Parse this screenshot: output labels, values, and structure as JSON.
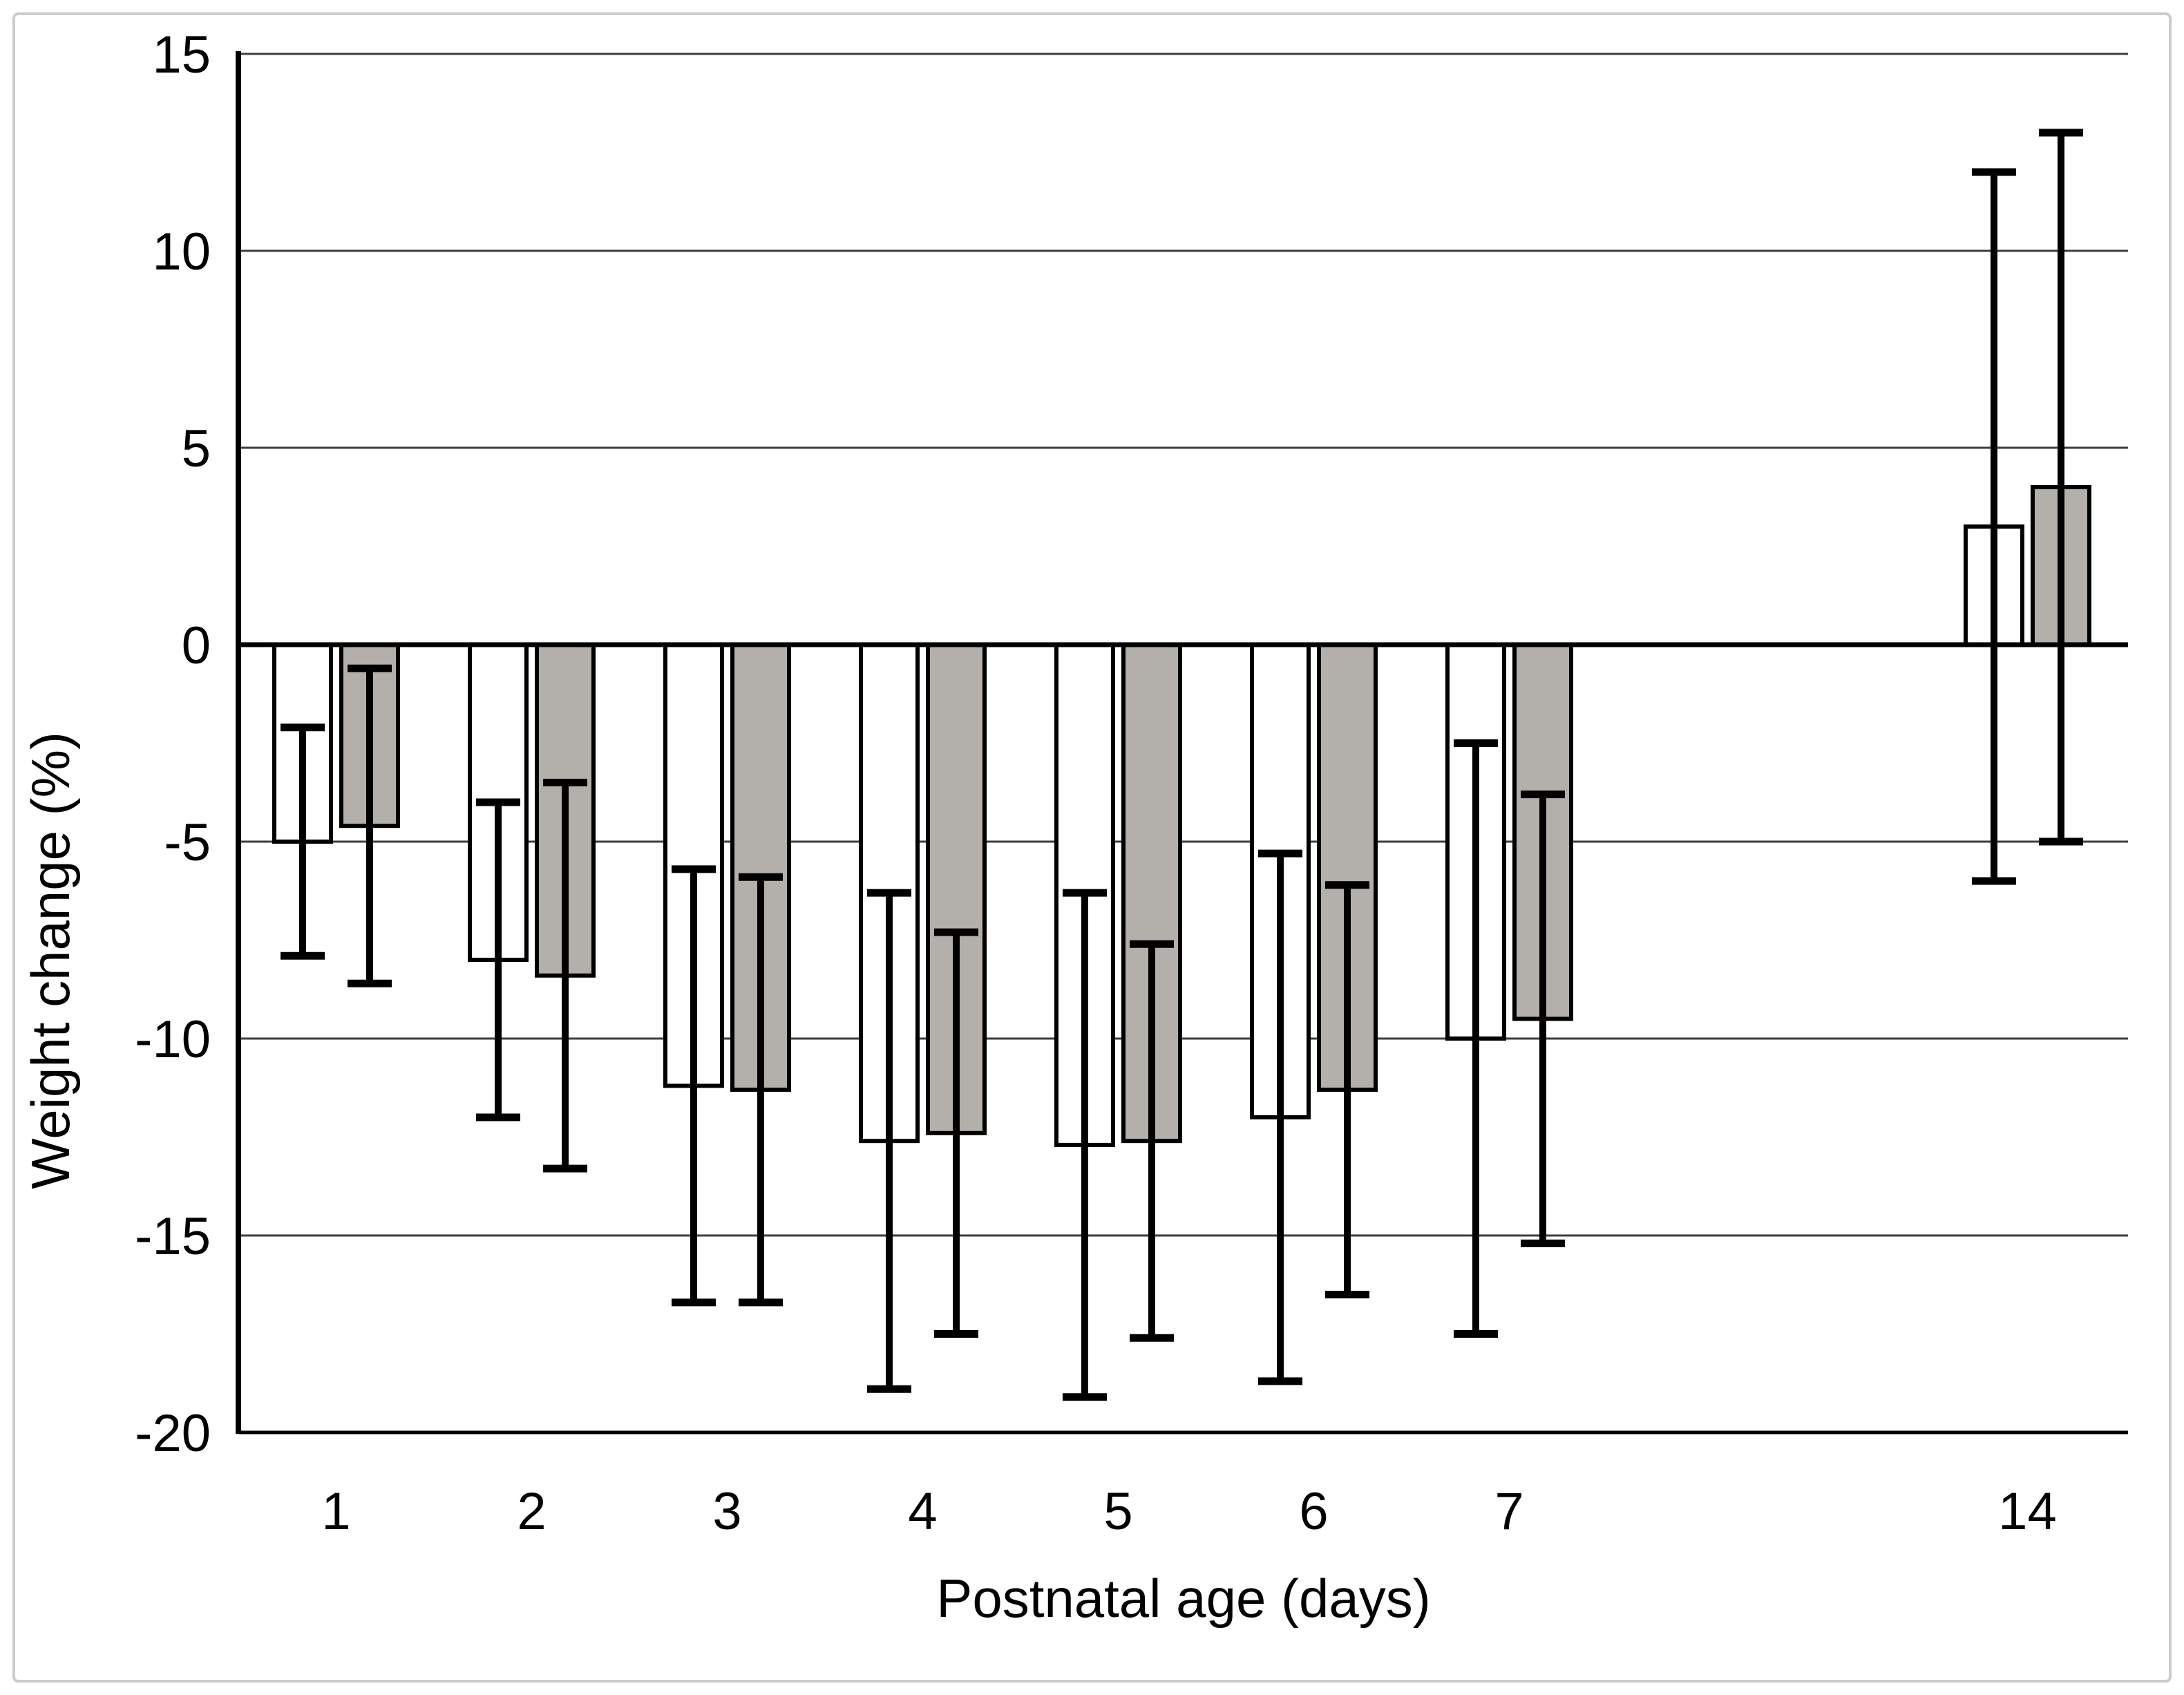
{
  "figure": {
    "description": "Grouped column chart with symmetric error bars, no title, no legend",
    "background_color": "#ffffff",
    "frame_border_color": "#c9cdd0",
    "bar_outline_color": "#000000",
    "gridline_color": "#3d3d3d",
    "axis_color": "#000000"
  },
  "chart_data": {
    "type": "bar",
    "title": "",
    "xlabel": "Postnatal age (days)",
    "ylabel": "Weight change (%)",
    "categories": [
      "1",
      "2",
      "3",
      "4",
      "5",
      "6",
      "7",
      "14"
    ],
    "category_slot_positions": [
      1,
      2,
      3,
      4,
      5,
      6,
      7,
      9.65
    ],
    "series": [
      {
        "name": "open-white-bars",
        "fill": "#ffffff",
        "outline": "#000000",
        "values": [
          -5.0,
          -8.0,
          -11.2,
          -12.6,
          -12.7,
          -12.0,
          -10.0,
          3.0
        ],
        "sd": [
          2.9,
          4.0,
          5.5,
          6.3,
          6.4,
          6.7,
          7.5,
          9.0
        ]
      },
      {
        "name": "filled-gray-bars",
        "fill": "#b3afab",
        "outline": "#000000",
        "values": [
          -4.6,
          -8.4,
          -11.3,
          -12.4,
          -12.6,
          -11.3,
          -9.5,
          4.0
        ],
        "sd": [
          4.0,
          4.9,
          5.4,
          5.1,
          5.0,
          5.2,
          5.7,
          9.0
        ]
      }
    ],
    "error_bars": "symmetric whiskers with end caps, value minus sd to value plus sd",
    "ylim": [
      -20,
      15
    ],
    "yticks": [
      15,
      10,
      5,
      0,
      -5,
      -10,
      -15,
      -20
    ],
    "grid": "horizontal gridlines every 5 units; zero line and bottom axis heavier",
    "legend": "none"
  }
}
